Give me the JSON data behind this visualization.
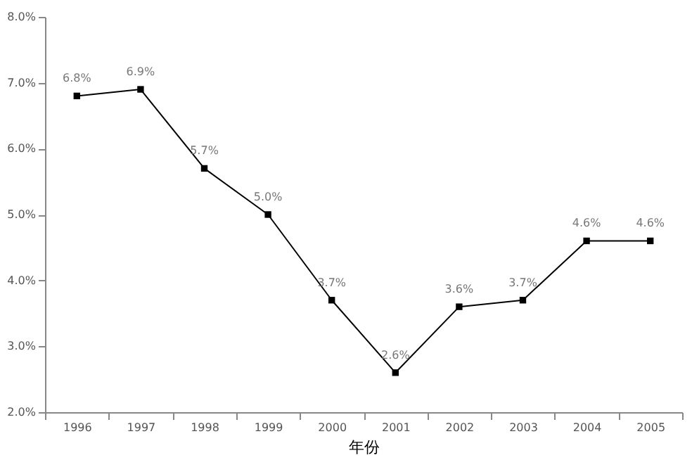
{
  "chart_data": {
    "type": "line",
    "xlabel": "年份",
    "categories": [
      "1996",
      "1997",
      "1998",
      "1999",
      "2000",
      "2001",
      "2002",
      "2003",
      "2004",
      "2005"
    ],
    "series": [
      {
        "color": "#000000",
        "values": [
          6.8,
          6.9,
          5.7,
          5.0,
          3.7,
          2.6,
          3.6,
          3.7,
          4.6,
          4.6
        ],
        "value_labels": [
          "6.8%",
          "6.9%",
          "5.7%",
          "5.0%",
          "3.7%",
          "2.6%",
          "3.6%",
          "3.7%",
          "4.6%",
          "4.6%"
        ]
      }
    ],
    "ylim": [
      2,
      8
    ],
    "yticks": [
      {
        "value": 2,
        "label": "2.0%"
      },
      {
        "value": 3,
        "label": "3.0%"
      },
      {
        "value": 4,
        "label": "4.0%"
      },
      {
        "value": 5,
        "label": "5.0%"
      },
      {
        "value": 6,
        "label": "6.0%"
      },
      {
        "value": 7,
        "label": "7.0%"
      },
      {
        "value": 8,
        "label": "8.0%"
      }
    ],
    "marker": "square",
    "line_style": "solid",
    "grid": false
  }
}
